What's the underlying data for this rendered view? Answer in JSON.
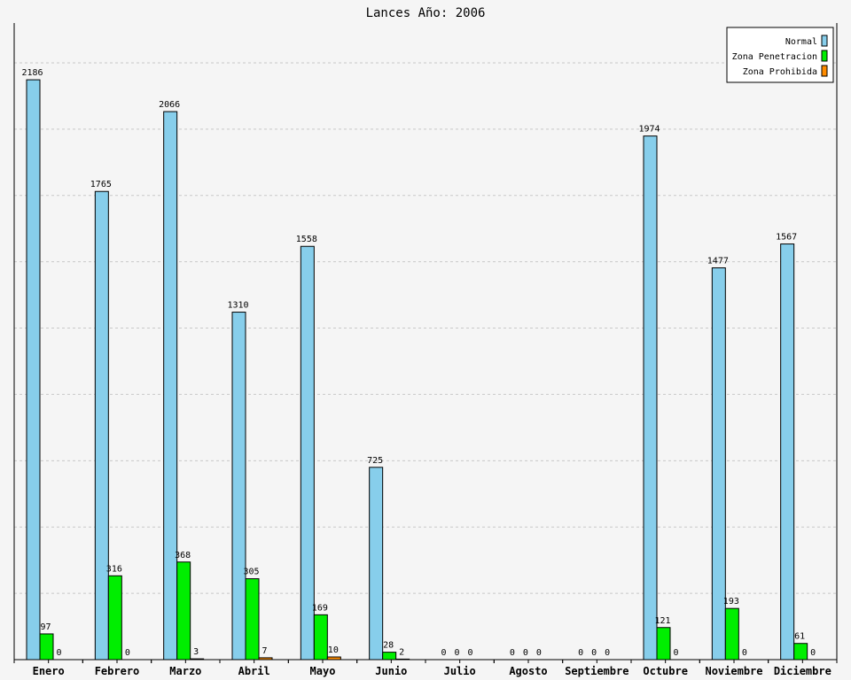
{
  "chart_data": {
    "type": "bar",
    "title": "Lances Año: 2006",
    "xlabel": "",
    "ylabel": "",
    "ylim": [
      0,
      2400
    ],
    "grid": true,
    "legend_position": "top-right",
    "categories": [
      "Enero",
      "Febrero",
      "Marzo",
      "Abril",
      "Mayo",
      "Junio",
      "Julio",
      "Agosto",
      "Septiembre",
      "Octubre",
      "Noviembre",
      "Diciembre"
    ],
    "series": [
      {
        "name": "Normal",
        "color": "#87ceeb",
        "values": [
          2186,
          1765,
          2066,
          1310,
          1558,
          725,
          0,
          0,
          0,
          1974,
          1477,
          1567
        ]
      },
      {
        "name": "Zona Penetracion",
        "color": "#00ee00",
        "values": [
          97,
          316,
          368,
          305,
          169,
          28,
          0,
          0,
          0,
          121,
          193,
          61
        ]
      },
      {
        "name": "Zona Prohibida",
        "color": "#ff8c00",
        "values": [
          0,
          0,
          3,
          7,
          10,
          2,
          0,
          0,
          0,
          0,
          0,
          0
        ]
      }
    ],
    "data_labels": [
      [
        "2186",
        "97",
        "0"
      ],
      [
        "1765",
        "316",
        "0"
      ],
      [
        "2066",
        "368",
        "3"
      ],
      [
        "1310",
        "305",
        "7"
      ],
      [
        "1558",
        "169",
        "10"
      ],
      [
        "725",
        "28",
        "2"
      ],
      [
        "0",
        "0",
        "0"
      ],
      [
        "0",
        "0",
        "0"
      ],
      [
        "0",
        "0",
        "0"
      ],
      [
        "1974",
        "121",
        "0"
      ],
      [
        "1477",
        "193",
        "0"
      ],
      [
        "1567",
        "61",
        "0"
      ]
    ]
  }
}
